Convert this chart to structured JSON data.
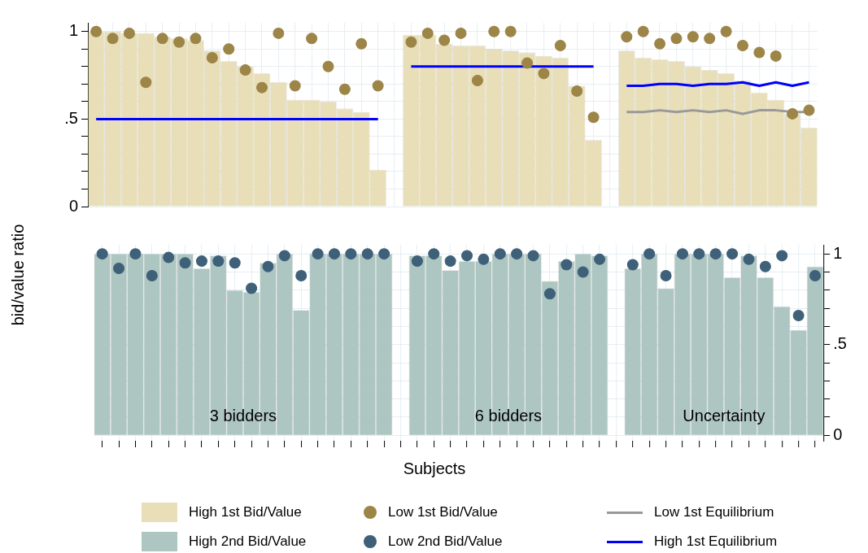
{
  "chart_data": [
    {
      "type": "bar",
      "ylabel": "bid/value ratio",
      "categories": [
        null,
        null,
        null,
        null,
        null,
        null,
        null,
        null,
        null,
        null,
        null,
        null,
        null,
        null,
        null,
        null,
        null,
        null,
        null,
        null,
        null,
        null,
        null,
        null,
        null,
        null,
        null,
        null,
        null,
        null,
        null,
        null,
        null,
        null,
        null,
        null,
        null,
        null,
        null,
        null,
        null,
        null,
        null,
        null
      ],
      "ylim": [
        0,
        1.05
      ],
      "yticks": [
        {
          "value": 0,
          "label": "0"
        },
        {
          "value": 0.1,
          "label": null
        },
        {
          "value": 0.2,
          "label": null
        },
        {
          "value": 0.3,
          "label": null
        },
        {
          "value": 0.4,
          "label": null
        },
        {
          "value": 0.5,
          "label": ".5"
        },
        {
          "value": 0.6,
          "label": null
        },
        {
          "value": 0.7,
          "label": null
        },
        {
          "value": 0.8,
          "label": null
        },
        {
          "value": 0.9,
          "label": null
        },
        {
          "value": 1,
          "label": "1"
        }
      ],
      "tick_labels": "y",
      "grid": true,
      "legend": "bottom",
      "series": [
        {
          "type": "bar",
          "name": "High 1st Bid/Value",
          "color": "#e8dfb8",
          "values": [
            1.0,
            1.0,
            0.99,
            0.99,
            0.97,
            0.96,
            0.95,
            0.89,
            0.83,
            0.8,
            0.76,
            0.71,
            0.61,
            0.61,
            0.6,
            0.56,
            0.54,
            0.21,
            null,
            0.98,
            0.98,
            0.93,
            0.92,
            0.92,
            0.9,
            0.89,
            0.88,
            0.86,
            0.85,
            0.69,
            0.38,
            null,
            0.89,
            0.85,
            0.84,
            0.83,
            0.8,
            0.78,
            0.76,
            0.72,
            0.65,
            0.61,
            0.53,
            0.45
          ]
        },
        {
          "type": "scatter",
          "name": "Low 1st Bid/Value",
          "color": "#9c8546",
          "marker": "circle",
          "values": [
            1.0,
            0.96,
            0.99,
            0.71,
            0.96,
            0.94,
            0.96,
            0.85,
            0.9,
            0.78,
            0.68,
            0.99,
            0.69,
            0.96,
            0.8,
            0.67,
            0.93,
            0.69,
            null,
            0.94,
            0.99,
            0.95,
            0.99,
            0.72,
            1.0,
            1.0,
            0.82,
            0.76,
            0.92,
            0.66,
            0.51,
            null,
            0.97,
            1.0,
            0.93,
            0.96,
            0.97,
            0.96,
            1.0,
            0.92,
            0.88,
            0.86,
            0.53,
            0.55
          ]
        },
        {
          "type": "line",
          "name": "Low 1st Equilibrium",
          "color": "#999999",
          "values": [
            null,
            null,
            null,
            null,
            null,
            null,
            null,
            null,
            null,
            null,
            null,
            null,
            null,
            null,
            null,
            null,
            null,
            null,
            null,
            null,
            null,
            null,
            null,
            null,
            null,
            null,
            null,
            null,
            null,
            null,
            null,
            null,
            0.54,
            0.54,
            0.55,
            0.54,
            0.55,
            0.54,
            0.55,
            0.53,
            0.55,
            0.55,
            0.54,
            0.54
          ]
        },
        {
          "type": "line",
          "name": "High 1st Equilibrium",
          "color": "#0000ff",
          "values": [
            0.5,
            0.5,
            0.5,
            0.5,
            0.5,
            0.5,
            0.5,
            0.5,
            0.5,
            0.5,
            0.5,
            0.5,
            0.5,
            0.5,
            0.5,
            0.5,
            0.5,
            0.5,
            null,
            0.8,
            0.8,
            0.8,
            0.8,
            0.8,
            0.8,
            0.8,
            0.8,
            0.8,
            0.8,
            0.8,
            0.8,
            null,
            0.69,
            0.69,
            0.7,
            0.7,
            0.69,
            0.7,
            0.7,
            0.71,
            0.69,
            0.71,
            0.69,
            0.71
          ]
        }
      ]
    },
    {
      "type": "bar",
      "xlabel": "Subjects",
      "annotations": [
        "3 bidders",
        "6 bidders",
        "Uncertainty"
      ],
      "categories": [
        null,
        null,
        null,
        null,
        null,
        null,
        null,
        null,
        null,
        null,
        null,
        null,
        null,
        null,
        null,
        null,
        null,
        null,
        null,
        null,
        null,
        null,
        null,
        null,
        null,
        null,
        null,
        null,
        null,
        null,
        null,
        null,
        null,
        null,
        null,
        null,
        null,
        null,
        null,
        null,
        null,
        null,
        null,
        null
      ],
      "ylim": [
        -0.03,
        1.05
      ],
      "yticks": [
        {
          "value": 0,
          "label": "0"
        },
        {
          "value": 0.1,
          "label": null
        },
        {
          "value": 0.2,
          "label": null
        },
        {
          "value": 0.3,
          "label": null
        },
        {
          "value": 0.4,
          "label": null
        },
        {
          "value": 0.5,
          "label": ".5"
        },
        {
          "value": 0.6,
          "label": null
        },
        {
          "value": 0.7,
          "label": null
        },
        {
          "value": 0.8,
          "label": null
        },
        {
          "value": 0.9,
          "label": null
        },
        {
          "value": 1,
          "label": "1"
        }
      ],
      "tick_labels": "y",
      "grid": true,
      "legend": "bottom",
      "series": [
        {
          "type": "bar",
          "name": "High 2nd Bid/Value",
          "color": "#adc6c1",
          "values": [
            1.0,
            1.0,
            1.0,
            1.0,
            1.0,
            1.0,
            0.92,
            0.99,
            0.8,
            0.79,
            0.95,
            1.0,
            0.69,
            1.0,
            1.0,
            1.0,
            1.0,
            1.0,
            null,
            0.99,
            0.99,
            0.91,
            0.96,
            0.96,
            1.0,
            1.0,
            1.0,
            0.85,
            0.96,
            1.0,
            0.99,
            null,
            0.92,
            1.0,
            0.81,
            1.0,
            1.0,
            1.0,
            0.87,
            0.99,
            0.87,
            0.71,
            0.58,
            0.93
          ]
        },
        {
          "type": "scatter",
          "name": "Low 2nd Bid/Value",
          "color": "#3e6079",
          "marker": "circle",
          "values": [
            1.0,
            0.92,
            1.0,
            0.88,
            0.98,
            0.95,
            0.96,
            0.96,
            0.95,
            0.81,
            0.93,
            0.99,
            0.88,
            1.0,
            1.0,
            1.0,
            1.0,
            1.0,
            null,
            0.96,
            1.0,
            0.96,
            0.99,
            0.97,
            1.0,
            1.0,
            0.99,
            0.78,
            0.94,
            0.9,
            0.97,
            null,
            0.94,
            1.0,
            0.88,
            1.0,
            1.0,
            1.0,
            1.0,
            0.97,
            0.93,
            0.99,
            0.66,
            0.88
          ]
        }
      ]
    }
  ]
}
